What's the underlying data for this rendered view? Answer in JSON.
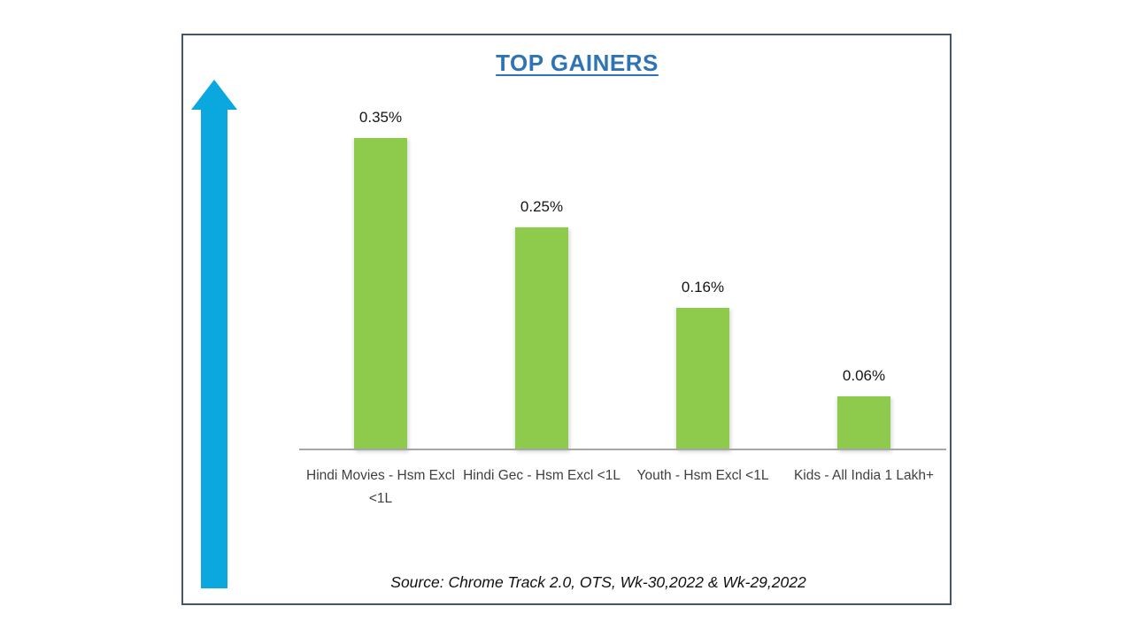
{
  "header": {
    "title": "TOP GAINERS",
    "title_color": "#2E74B5"
  },
  "icons": {
    "up_arrow_color": "#0BA8E0"
  },
  "footer": {
    "source_note": "Source: Chrome Track 2.0, OTS, Wk-30,2022 & Wk-29,2022"
  },
  "chart_data": {
    "type": "bar",
    "title": "TOP GAINERS",
    "categories": [
      "Hindi Movies - Hsm Excl <1L",
      "Hindi Gec - Hsm Excl <1L",
      "Youth - Hsm Excl <1L",
      "Kids - All India 1 Lakh+"
    ],
    "values": [
      0.35,
      0.25,
      0.16,
      0.06
    ],
    "data_labels": [
      "0.35%",
      "0.25%",
      "0.16%",
      "0.06%"
    ],
    "unit": "percent",
    "xlabel": "",
    "ylabel": "",
    "ylim": [
      0,
      0.36
    ],
    "grid": false,
    "legend": false,
    "bar_color": "#8ECB4C",
    "axis_color": "#A6A6A6",
    "source_note": "Source: Chrome Track 2.0, OTS, Wk-30,2022 & Wk-29,2022"
  }
}
